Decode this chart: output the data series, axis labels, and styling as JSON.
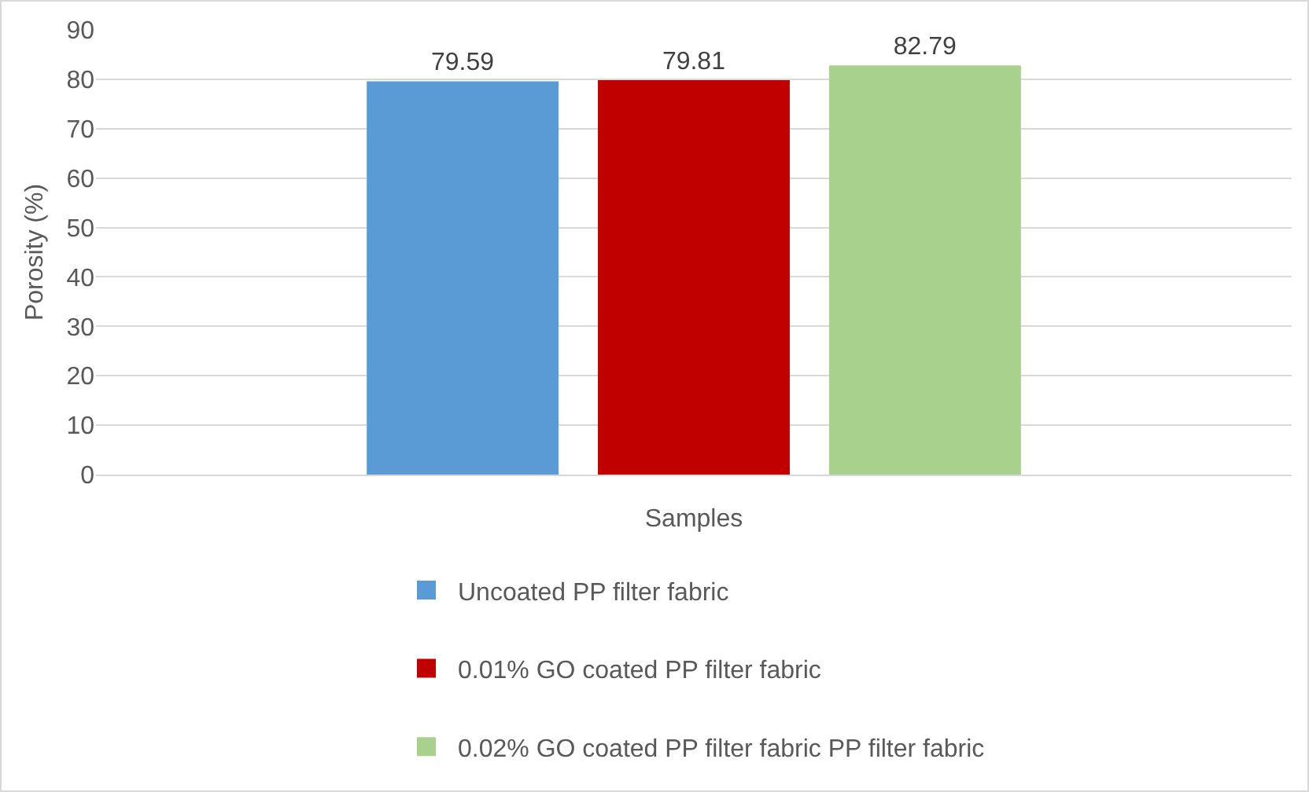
{
  "chart_data": {
    "type": "bar",
    "xlabel": "Samples",
    "ylabel": "Porosity (%)",
    "categories": [
      null
    ],
    "series": [
      {
        "name": "Uncoated PP filter fabric",
        "color": "#5b9bd5",
        "values": [
          79.59
        ]
      },
      {
        "name": "0.01% GO coated PP filter fabric",
        "color": "#c00000",
        "values": [
          79.81
        ]
      },
      {
        "name": "0.02% GO coated PP filter fabric PP filter fabric",
        "color": "#a9d18e",
        "values": [
          82.79
        ]
      }
    ],
    "ylim": [
      0,
      90
    ],
    "yticks": [
      0,
      10,
      20,
      30,
      40,
      50,
      60,
      70,
      80,
      90
    ],
    "grid": "y",
    "legend": "bottom",
    "data_labels": true
  }
}
